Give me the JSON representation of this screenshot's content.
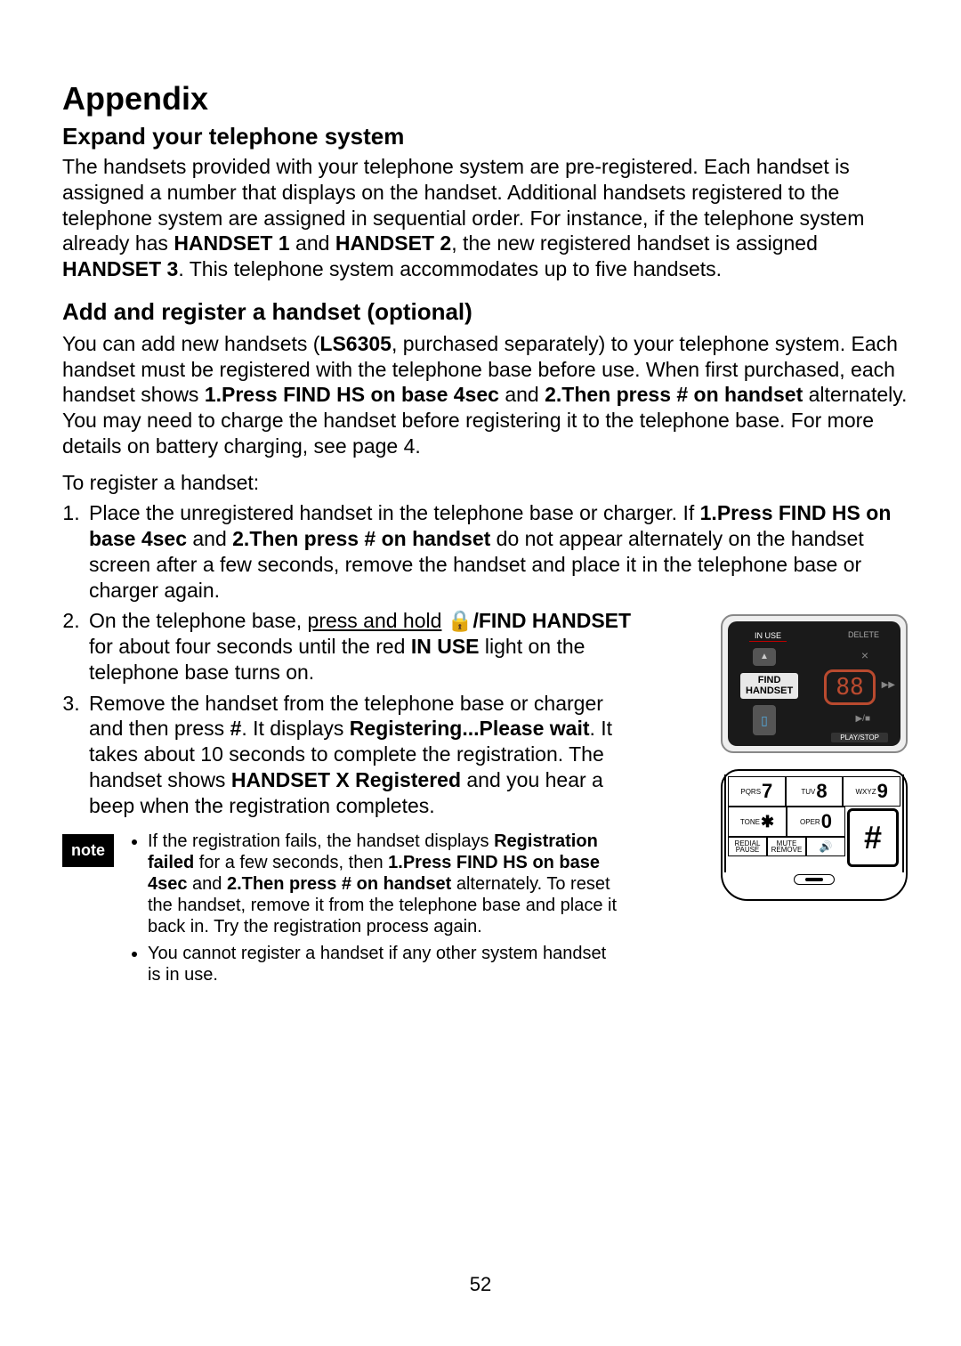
{
  "page_number": "52",
  "title": "Appendix",
  "section1": {
    "heading": "Expand your telephone system",
    "para_parts": [
      {
        "t": "The handsets provided with your telephone system are pre-registered. Each handset is assigned a number that displays on the handset. Additional handsets registered to the telephone system are assigned in sequential order. For instance, if the telephone system already has "
      },
      {
        "t": "HANDSET 1",
        "b": true
      },
      {
        "t": " and "
      },
      {
        "t": "HANDSET 2",
        "b": true
      },
      {
        "t": ", the new registered handset is assigned "
      },
      {
        "t": "HANDSET 3",
        "b": true
      },
      {
        "t": ". This telephone system accommodates up to five handsets."
      }
    ]
  },
  "section2": {
    "heading": "Add and register a handset (optional)",
    "para_parts": [
      {
        "t": "You can add new handsets ("
      },
      {
        "t": "LS6305",
        "b": true
      },
      {
        "t": ", purchased separately) to your telephone system. Each handset must be registered with the  telephone base before use. When first purchased, each handset shows "
      },
      {
        "t": "1.Press FIND HS on base 4sec",
        "b": true
      },
      {
        "t": " and "
      },
      {
        "t": "2.Then press # on handset",
        "b": true
      },
      {
        "t": " alternately. You may need to charge the handset before registering it to the telephone base. For more details on battery charging, see page 4."
      }
    ],
    "intro": "To register a handset:",
    "steps": [
      [
        {
          "t": "Place the unregistered handset in the telephone base or charger. If "
        },
        {
          "t": "1.Press FIND HS on base 4sec",
          "b": true
        },
        {
          "t": " and "
        },
        {
          "t": "2.Then press # on handset",
          "b": true
        },
        {
          "t": " do not appear alternately on the handset screen after a few seconds, remove the handset and place it in the telephone base or charger again."
        }
      ],
      [
        {
          "t": "On the telephone base, "
        },
        {
          "t": "press and hold",
          "u": true
        },
        {
          "t": " "
        },
        {
          "t": "🔒/FIND HANDSET",
          "b": true
        },
        {
          "t": " for about four seconds until the red "
        },
        {
          "t": "IN USE",
          "b": true
        },
        {
          "t": " light on the telephone base turns on."
        }
      ],
      [
        {
          "t": "Remove the handset from the telephone base or charger and then press "
        },
        {
          "t": "#",
          "b": true
        },
        {
          "t": ". It displays "
        },
        {
          "t": "Registering...Please wait",
          "b": true
        },
        {
          "t": ". It takes about 10 seconds to complete the registration. The handset shows "
        },
        {
          "t": "HANDSET X Registered",
          "b": true
        },
        {
          "t": " and you hear a beep when the registration completes."
        }
      ]
    ]
  },
  "note": {
    "label": "note",
    "items": [
      [
        {
          "t": "If the registration fails, the handset displays "
        },
        {
          "t": "Registration failed",
          "b": true
        },
        {
          "t": " for a few seconds, then "
        },
        {
          "t": "1.Press FIND HS on base 4sec",
          "b": true
        },
        {
          "t": " and "
        },
        {
          "t": "2.Then press # on handset",
          "b": true
        },
        {
          "t": " alternately. To reset the handset, remove it from the telephone base and place it back in. Try the registration process again."
        }
      ],
      [
        {
          "t": "You cannot register a handset if any other system handset is in use."
        }
      ]
    ]
  },
  "figures": {
    "base": {
      "in_use": "IN USE",
      "delete": "DELETE",
      "up": "▲",
      "find_handset_l1": "FIND",
      "find_handset_l2": "HANDSET",
      "display": "88",
      "handset_icon": "▯",
      "playstop": "PLAY/STOP",
      "playstop_sym": "▶/■",
      "x": "×",
      "fwd": "▶▶"
    },
    "keypad": {
      "k7_small": "PQRS",
      "k7_big": "7",
      "k8_small": "TUV",
      "k8_big": "8",
      "k9_small": "WXYZ",
      "k9_big": "9",
      "kstar_small": "TONE",
      "kstar_big": "✱",
      "k0_small": "OPER",
      "k0_big": "0",
      "khash": "#",
      "kredial_l1": "REDIAL",
      "kredial_l2": "PAUSE",
      "kmute_l1": "MUTE",
      "kmute_l2": "REMOVE",
      "kspeaker": "🔊"
    }
  }
}
